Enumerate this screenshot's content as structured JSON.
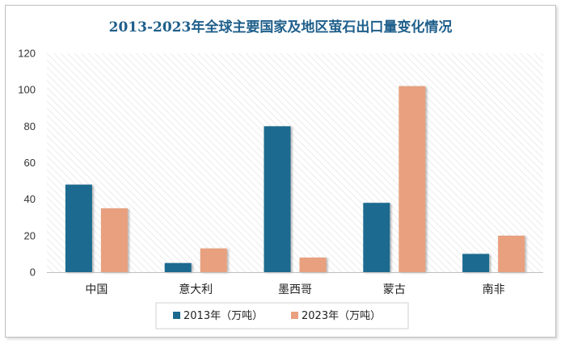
{
  "chart_data": {
    "type": "bar",
    "title": "2013-2023年全球主要国家及地区萤石出口量变化情况",
    "categories": [
      "中国",
      "意大利",
      "墨西哥",
      "蒙古",
      "南非"
    ],
    "series": [
      {
        "name": "2013年（万吨）",
        "values": [
          48,
          5,
          80,
          38,
          10
        ],
        "color": "#1a6a8f"
      },
      {
        "name": "2023年（万吨）",
        "values": [
          35,
          13,
          8,
          102,
          20
        ],
        "color": "#e8a07e"
      }
    ],
    "yticks": [
      "0",
      "20",
      "40",
      "60",
      "80",
      "100",
      "120"
    ],
    "ylim": [
      0,
      120
    ],
    "grid": false,
    "legend_position": "bottom"
  }
}
